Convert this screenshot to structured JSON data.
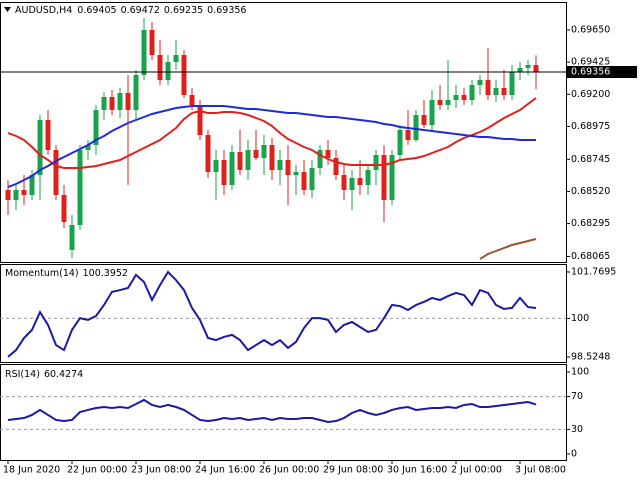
{
  "chart_data": [
    {
      "type": "candlestick",
      "symbol": "AUDUSD,H4",
      "categories": [
        "18 Jun 2020",
        null,
        null,
        null,
        null,
        null,
        null,
        null,
        "22 Jun 00:00",
        null,
        null,
        null,
        null,
        null,
        null,
        null,
        "23 Jun 08:00",
        null,
        null,
        null,
        null,
        null,
        null,
        null,
        "24 Jun 16:00",
        null,
        null,
        null,
        null,
        null,
        null,
        null,
        "26 Jun 00:00",
        null,
        null,
        null,
        null,
        null,
        null,
        null,
        "29 Jun 08:00",
        null,
        null,
        null,
        null,
        null,
        null,
        null,
        "30 Jun 16:00",
        null,
        null,
        null,
        null,
        null,
        null,
        null,
        "2 Jul 00:00",
        null,
        null,
        null,
        null,
        null,
        null,
        null,
        "3 Jul 08:00",
        null,
        null
      ],
      "open": [
        0.6853,
        0.6846,
        0.6853,
        0.68495,
        0.68635,
        0.6902,
        0.6881,
        0.68495,
        0.6811,
        0.68285,
        0.6881,
        0.68845,
        0.6909,
        0.69181,
        0.6909,
        0.69209,
        0.6909,
        0.69335,
        0.6965,
        0.69475,
        0.693,
        0.69426,
        0.69475,
        0.69195,
        0.69125,
        0.68915,
        0.68656,
        0.6874,
        0.68565,
        0.68796,
        0.6867,
        0.6881,
        0.68754,
        0.68845,
        0.6867,
        0.6874,
        0.68635,
        0.68656,
        0.6853,
        0.68684,
        0.6881,
        0.68754,
        0.68635,
        0.6853,
        0.68614,
        0.68565,
        0.6867,
        0.68775,
        0.6846,
        0.68775,
        0.6895,
        0.6888,
        0.69055,
        0.68985,
        0.6916,
        0.69125,
        0.6916,
        0.69195,
        0.6916,
        0.69265,
        0.693,
        0.69195,
        0.69244,
        0.69195,
        0.69356,
        0.69384,
        0.69405
      ],
      "high": [
        0.686,
        0.68565,
        0.68635,
        0.6867,
        0.69055,
        0.6909,
        0.68845,
        0.68565,
        0.68355,
        0.68845,
        0.6888,
        0.69125,
        0.69216,
        0.6923,
        0.69244,
        0.69335,
        0.6937,
        0.69734,
        0.69706,
        0.6958,
        0.69475,
        0.6958,
        0.6951,
        0.69244,
        0.6916,
        0.6895,
        0.6881,
        0.6881,
        0.68845,
        0.6895,
        0.6888,
        0.6895,
        0.68915,
        0.68894,
        0.6881,
        0.68845,
        0.68705,
        0.6874,
        0.6874,
        0.68845,
        0.6888,
        0.6881,
        0.68705,
        0.6867,
        0.6874,
        0.68705,
        0.6881,
        0.68845,
        0.6881,
        0.68985,
        0.6909,
        0.6909,
        0.6916,
        0.6923,
        0.69265,
        0.6944,
        0.69265,
        0.69244,
        0.693,
        0.69335,
        0.69524,
        0.693,
        0.6937,
        0.69405,
        0.69426,
        0.6944,
        0.69472
      ],
      "low": [
        0.68355,
        0.6839,
        0.68425,
        0.6846,
        0.6846,
        0.68775,
        0.6846,
        0.68264,
        0.68054,
        0.6825,
        0.6874,
        0.68775,
        0.6902,
        0.69055,
        0.69034,
        0.68565,
        0.6902,
        0.693,
        0.6944,
        0.69265,
        0.69265,
        0.6937,
        0.69174,
        0.6909,
        0.6888,
        0.68614,
        0.6846,
        0.68495,
        0.6853,
        0.68635,
        0.686,
        0.6874,
        0.68635,
        0.686,
        0.68565,
        0.68425,
        0.68495,
        0.68495,
        0.68474,
        0.68635,
        0.68705,
        0.686,
        0.6846,
        0.6839,
        0.68495,
        0.68495,
        0.68565,
        0.68306,
        0.68425,
        0.6874,
        0.68845,
        0.68866,
        0.68964,
        0.68936,
        0.6909,
        0.6909,
        0.69104,
        0.69125,
        0.69125,
        0.69195,
        0.6916,
        0.69146,
        0.6916,
        0.6916,
        0.693,
        0.69335,
        0.69235
      ],
      "close": [
        0.6846,
        0.6853,
        0.68495,
        0.68635,
        0.6902,
        0.6881,
        0.68495,
        0.68306,
        0.68285,
        0.6881,
        0.68845,
        0.6909,
        0.69181,
        0.6909,
        0.69209,
        0.6909,
        0.69335,
        0.6965,
        0.69475,
        0.693,
        0.69426,
        0.69475,
        0.69195,
        0.69125,
        0.68915,
        0.68656,
        0.6874,
        0.68565,
        0.68796,
        0.6867,
        0.6881,
        0.68754,
        0.68845,
        0.6867,
        0.6874,
        0.68635,
        0.68656,
        0.6853,
        0.68684,
        0.6881,
        0.68754,
        0.68635,
        0.6853,
        0.68614,
        0.68565,
        0.6867,
        0.68775,
        0.6846,
        0.68775,
        0.6895,
        0.6888,
        0.69055,
        0.68985,
        0.6916,
        0.69125,
        0.6916,
        0.69195,
        0.6916,
        0.69265,
        0.693,
        0.69195,
        0.69244,
        0.69195,
        0.69356,
        0.69384,
        0.69405,
        0.69356
      ],
      "up_color": "#16a34a",
      "down_color": "#e0201c",
      "lines": [
        {
          "color": "#e0201c",
          "values": [
            0.68929,
            0.68908,
            0.6888,
            0.68831,
            0.68775,
            0.6874,
            0.68698,
            0.68684,
            0.68684,
            0.68684,
            0.68691,
            0.68698,
            0.68712,
            0.68726,
            0.6874,
            0.68768,
            0.68796,
            0.68824,
            0.68852,
            0.6888,
            0.68922,
            0.68964,
            0.69027,
            0.69069,
            0.69083,
            0.69069,
            0.69069,
            0.69076,
            0.69076,
            0.69069,
            0.69055,
            0.69034,
            0.69013,
            0.68978,
            0.68929,
            0.68887,
            0.68859,
            0.68831,
            0.6881,
            0.68775,
            0.68747,
            0.68726,
            0.68712,
            0.68705,
            0.68705,
            0.68705,
            0.68705,
            0.68705,
            0.68719,
            0.6874,
            0.68747,
            0.68754,
            0.68768,
            0.68789,
            0.6881,
            0.68831,
            0.68866,
            0.68894,
            0.68915,
            0.68936,
            0.68964,
            0.68999,
            0.69034,
            0.69062,
            0.6909,
            0.69132,
            0.69174
          ]
        },
        {
          "color": "#1f2bd6",
          "values": [
            0.68551,
            0.68572,
            0.686,
            0.68628,
            0.6867,
            0.68698,
            0.68733,
            0.68761,
            0.68789,
            0.68817,
            0.68845,
            0.6888,
            0.68908,
            0.68943,
            0.68971,
            0.68999,
            0.6902,
            0.69041,
            0.69062,
            0.69076,
            0.6909,
            0.69104,
            0.69111,
            0.69118,
            0.69118,
            0.69118,
            0.69118,
            0.69118,
            0.69111,
            0.69104,
            0.69097,
            0.69097,
            0.6909,
            0.69083,
            0.69076,
            0.69069,
            0.69069,
            0.69062,
            0.69055,
            0.69048,
            0.69041,
            0.69041,
            0.69034,
            0.69027,
            0.6902,
            0.69013,
            0.69006,
            0.68992,
            0.68985,
            0.68971,
            0.68964,
            0.68957,
            0.6895,
            0.68943,
            0.68936,
            0.68929,
            0.68922,
            0.68915,
            0.68908,
            0.68901,
            0.68901,
            0.68894,
            0.68887,
            0.68887,
            0.6888,
            0.6888,
            0.6888
          ]
        },
        {
          "color": "#a0522d",
          "values": [
            null,
            null,
            null,
            null,
            null,
            null,
            null,
            null,
            null,
            null,
            null,
            null,
            null,
            null,
            null,
            null,
            null,
            null,
            null,
            null,
            null,
            null,
            null,
            null,
            null,
            null,
            null,
            null,
            null,
            null,
            null,
            null,
            null,
            null,
            null,
            null,
            null,
            null,
            null,
            null,
            null,
            null,
            null,
            null,
            null,
            null,
            null,
            null,
            null,
            null,
            null,
            null,
            null,
            null,
            null,
            null,
            null,
            null,
            null,
            0.68047,
            0.68082,
            0.68103,
            0.68124,
            0.68145,
            0.68159,
            0.68173,
            0.68187
          ]
        }
      ],
      "ylim": [
        0.68026,
        0.69846
      ],
      "yticks": [
        {
          "value": 0.6965,
          "label": "0.69650"
        },
        0.69425,
        {
          "value": 0.692,
          "label": "0.69200"
        },
        0.68975,
        0.68745,
        {
          "value": 0.6852,
          "label": "0.68520"
        },
        0.68295,
        0.68065
      ]
    },
    {
      "type": "line",
      "title": "Momentum(14)",
      "color": "#1a1aa6",
      "values": [
        98.53,
        98.79,
        99.25,
        99.56,
        100.24,
        99.75,
        98.98,
        98.79,
        99.56,
        100.01,
        99.94,
        100.09,
        100.51,
        101.01,
        101.08,
        101.16,
        101.66,
        101.39,
        100.7,
        101.27,
        101.77,
        101.46,
        101.08,
        100.4,
        99.94,
        99.25,
        99.17,
        99.29,
        99.37,
        99.17,
        98.79,
        98.98,
        99.17,
        98.98,
        99.17,
        98.87,
        99.1,
        99.63,
        100.01,
        100.01,
        99.94,
        99.48,
        99.75,
        99.86,
        99.67,
        99.48,
        99.56,
        100.01,
        100.51,
        100.47,
        100.32,
        100.51,
        100.63,
        100.78,
        100.7,
        100.85,
        100.97,
        100.89,
        100.51,
        101.08,
        100.97,
        100.51,
        100.36,
        100.4,
        100.78,
        100.43,
        100.3952
      ],
      "ylim": [
        98.334,
        102.037
      ],
      "yticks": [
        101.7695,
        100,
        98.5248
      ],
      "levels": [
        100
      ]
    },
    {
      "type": "line",
      "title": "RSI(14)",
      "color": "#1a1aa6",
      "values": [
        41.5,
        42.7,
        43.9,
        47.6,
        53.7,
        47.6,
        41.5,
        40.2,
        41.5,
        51.2,
        53.7,
        56.1,
        57.3,
        56.1,
        57.3,
        56.1,
        61.0,
        65.9,
        59.8,
        57.3,
        59.8,
        57.3,
        53.7,
        47.6,
        41.5,
        40.2,
        41.5,
        43.9,
        42.7,
        43.9,
        41.5,
        42.7,
        43.9,
        41.5,
        43.9,
        42.7,
        42.7,
        43.9,
        43.9,
        41.5,
        39.0,
        40.2,
        43.9,
        50.0,
        53.7,
        50.0,
        47.6,
        50.0,
        53.7,
        56.1,
        57.3,
        53.7,
        54.9,
        56.1,
        56.1,
        57.3,
        56.1,
        59.8,
        61.0,
        57.3,
        57.3,
        58.5,
        59.8,
        61.0,
        62.2,
        63.4,
        60.4274
      ],
      "ylim": [
        -7.3,
        108.5
      ],
      "yticks": [
        100,
        70,
        30,
        0
      ],
      "levels": [
        70,
        30
      ]
    }
  ]
}
